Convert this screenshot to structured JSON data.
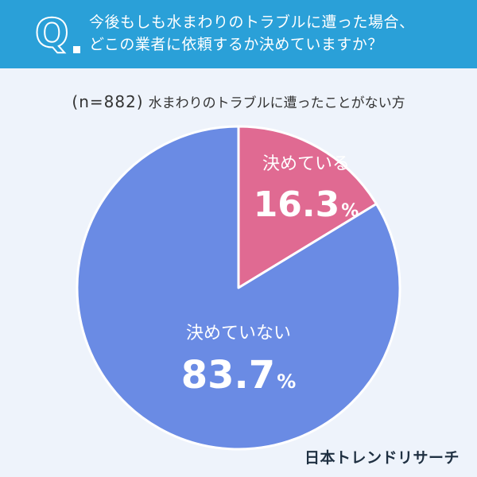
{
  "header": {
    "mark": "Q",
    "question_line1": "今後もしも水まわりのトラブルに遭った場合、",
    "question_line2": "どこの業者に依頼するか決めていますか？",
    "background": "#2aa0d8"
  },
  "subtitle": {
    "sample": "(n=882)",
    "text": "水まわりのトラブルに遭ったことがない方"
  },
  "chart_data": {
    "type": "pie",
    "title": "",
    "start_angle_deg": 0,
    "direction": "clockwise",
    "slices": [
      {
        "label": "決めている",
        "value": 16.3,
        "value_label": "16.3",
        "unit": "%",
        "color": "#e06a92"
      },
      {
        "label": "決めていない",
        "value": 83.7,
        "value_label": "83.7",
        "unit": "%",
        "color": "#6a8be4"
      }
    ],
    "slice_border_color": "#ffffff"
  },
  "brand": {
    "logo_text": "日本トレンドリサーチ"
  }
}
